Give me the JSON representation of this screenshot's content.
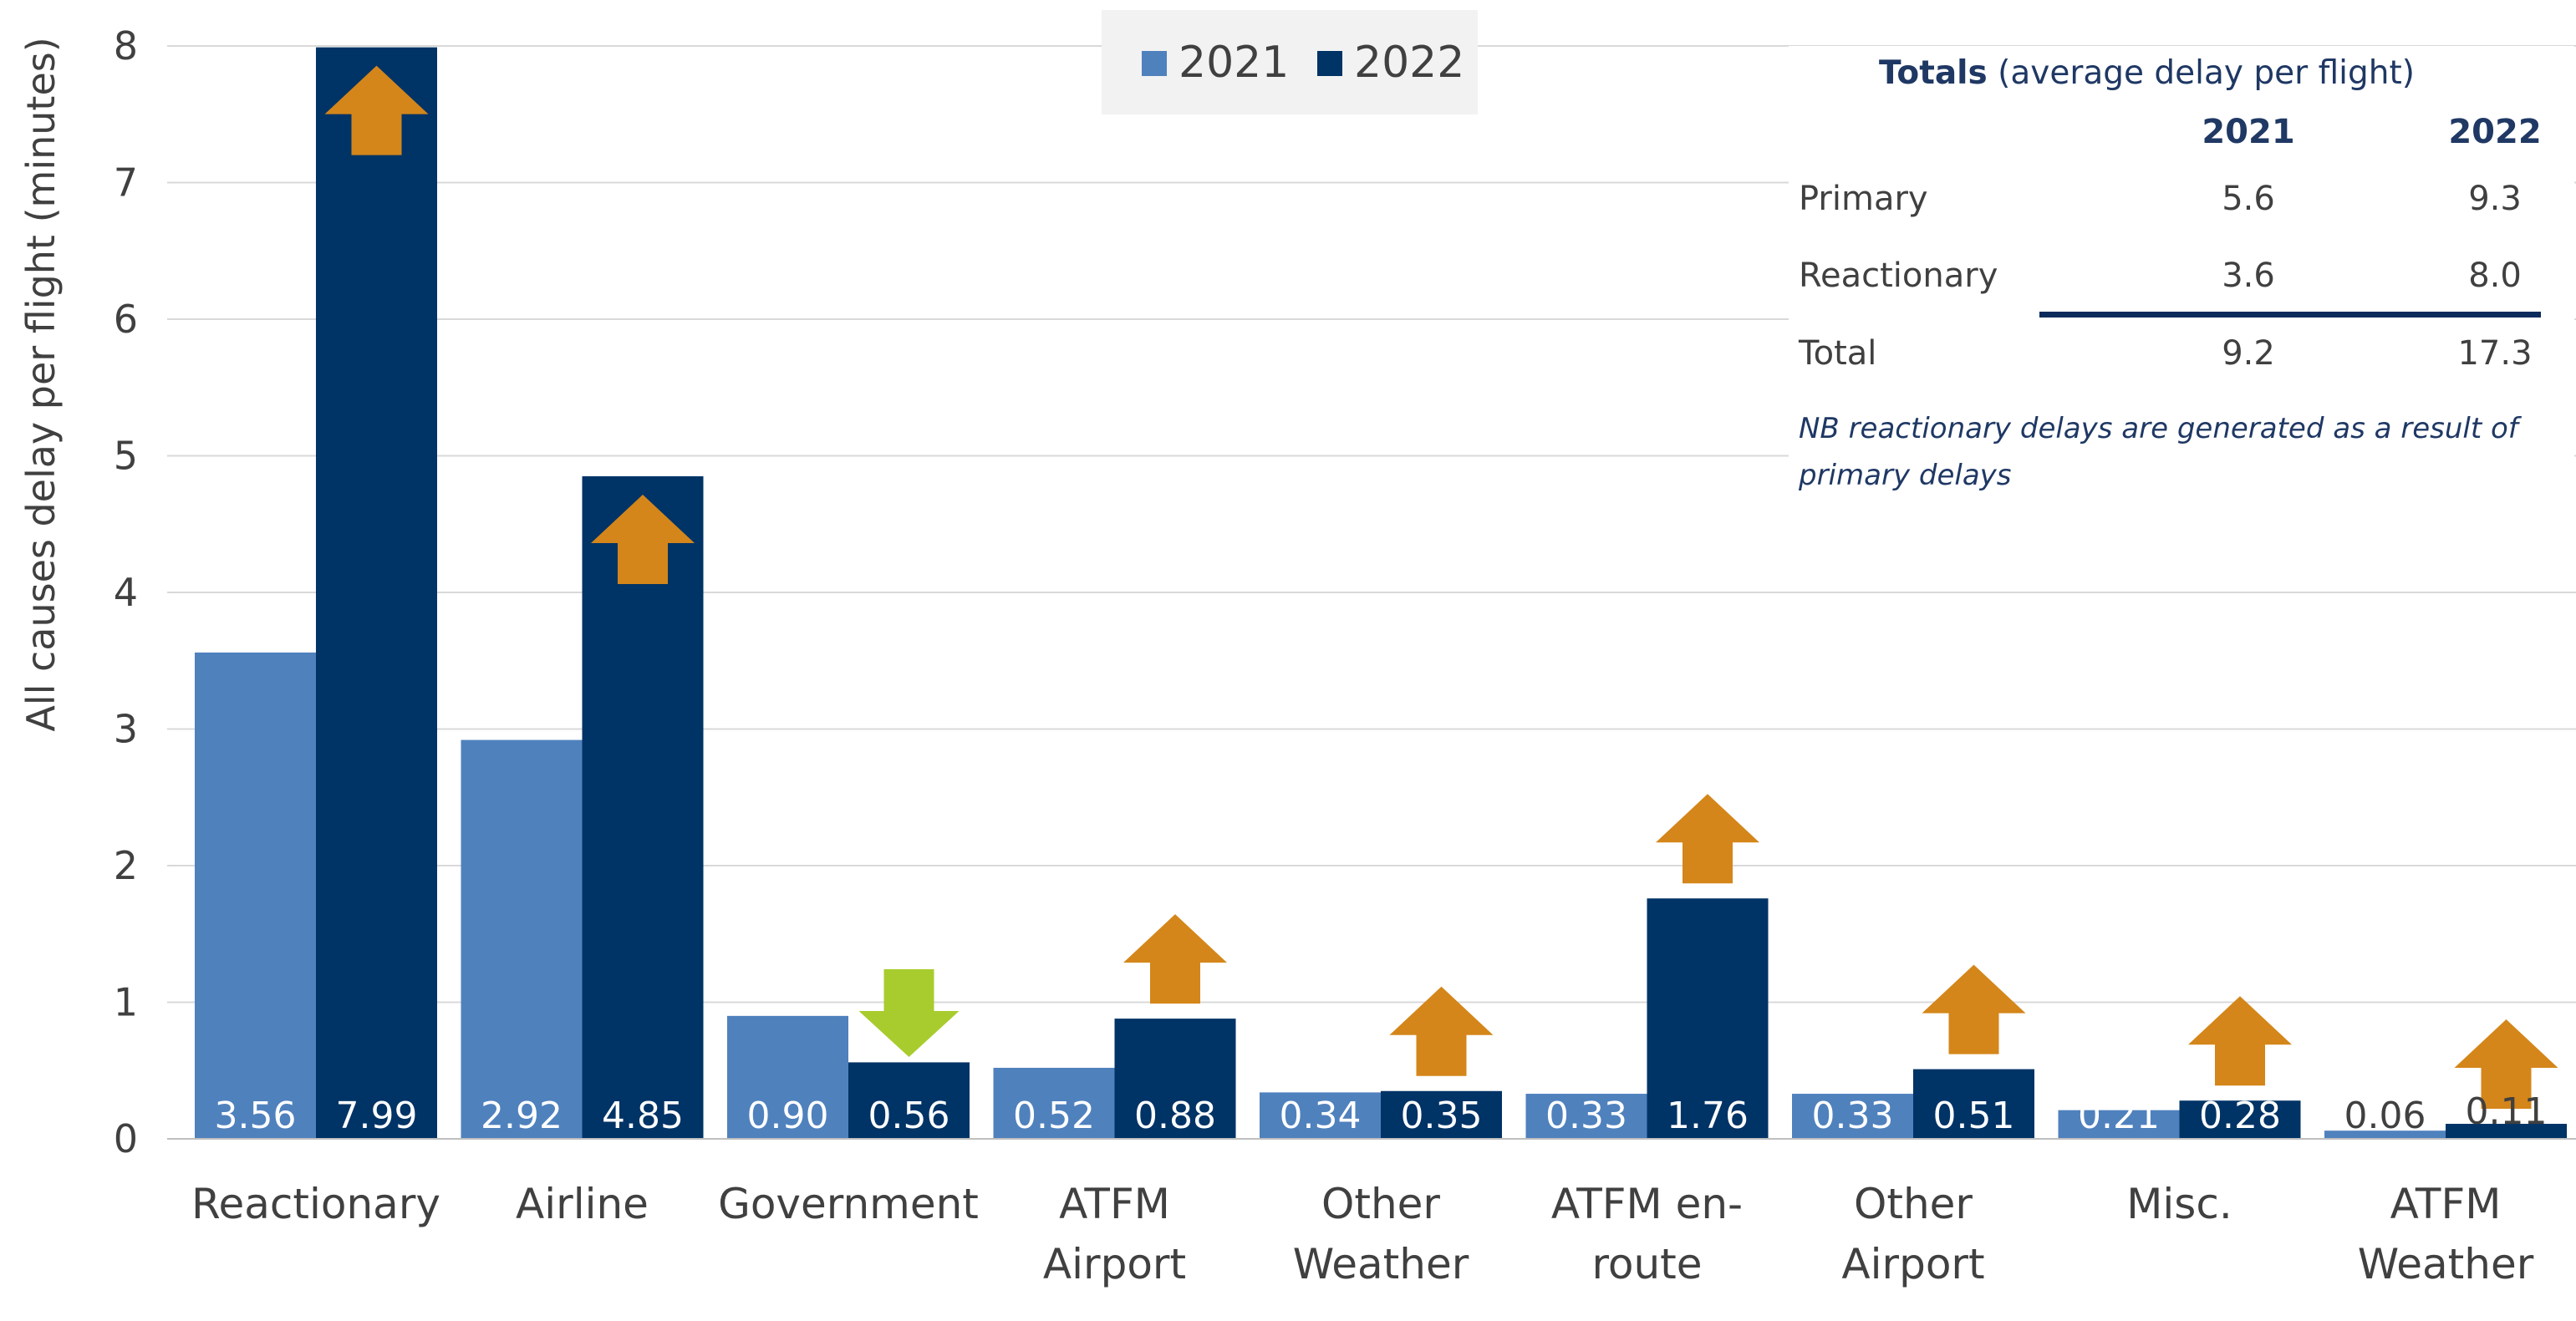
{
  "chart_data": {
    "type": "bar",
    "ylabel": "All causes delay per flight (minutes)",
    "ylim": [
      0,
      8
    ],
    "yticks": [
      0,
      1,
      2,
      3,
      4,
      5,
      6,
      7,
      8
    ],
    "grid": true,
    "legend_position": "top-center",
    "categories": [
      [
        "Reactionary"
      ],
      [
        "Airline"
      ],
      [
        "Government"
      ],
      [
        "ATFM",
        "Airport"
      ],
      [
        "Other",
        "Weather"
      ],
      [
        "ATFM en-",
        "route"
      ],
      [
        "Other",
        "Airport"
      ],
      [
        "Misc."
      ],
      [
        "ATFM",
        "Weather"
      ]
    ],
    "series": [
      {
        "name": "2021",
        "color": "#4f81bd",
        "values": [
          3.56,
          2.92,
          0.9,
          0.52,
          0.34,
          0.33,
          0.33,
          0.21,
          0.06
        ],
        "labels": [
          "3.56",
          "2.92",
          "0.90",
          "0.52",
          "0.34",
          "0.33",
          "0.33",
          "0.21",
          "0.06"
        ]
      },
      {
        "name": "2022",
        "color": "#003366",
        "values": [
          7.99,
          4.85,
          0.56,
          0.88,
          0.35,
          1.76,
          0.51,
          0.28,
          0.11
        ],
        "labels": [
          "7.99",
          "4.85",
          "0.56",
          "0.88",
          "0.35",
          "1.76",
          "0.51",
          "0.28",
          "0.11"
        ]
      }
    ],
    "change_arrows": [
      "up",
      "up",
      "down",
      "up",
      "up",
      "up",
      "up",
      "up",
      "up"
    ],
    "arrow_colors": {
      "up": "#d4861a",
      "down": "#a8cc2e"
    }
  },
  "totals": {
    "title_bold": "Totals",
    "title_rest": " (average delay per flight)",
    "col_2021": "2021",
    "col_2022": "2022",
    "rows": [
      {
        "label": "Primary",
        "v2021": "5.6",
        "v2022": "9.3"
      },
      {
        "label": "Reactionary",
        "v2021": "3.6",
        "v2022": "8.0"
      },
      {
        "label": "Total",
        "v2021": "9.2",
        "v2022": "17.3"
      }
    ],
    "note": "NB reactionary delays are generated as a result of primary delays"
  }
}
